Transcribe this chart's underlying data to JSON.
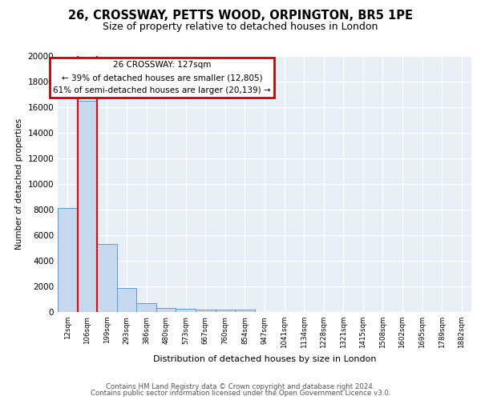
{
  "title1": "26, CROSSWAY, PETTS WOOD, ORPINGTON, BR5 1PE",
  "title2": "Size of property relative to detached houses in London",
  "xlabel": "Distribution of detached houses by size in London",
  "ylabel": "Number of detached properties",
  "categories": [
    "12sqm",
    "106sqm",
    "199sqm",
    "293sqm",
    "386sqm",
    "480sqm",
    "573sqm",
    "667sqm",
    "760sqm",
    "854sqm",
    "947sqm",
    "1041sqm",
    "1134sqm",
    "1228sqm",
    "1321sqm",
    "1415sqm",
    "1508sqm",
    "1602sqm",
    "1695sqm",
    "1789sqm",
    "1882sqm"
  ],
  "values": [
    8100,
    16500,
    5300,
    1850,
    700,
    320,
    230,
    210,
    200,
    180,
    0,
    0,
    0,
    0,
    0,
    0,
    0,
    0,
    0,
    0,
    0
  ],
  "bar_color": "#c5d8ed",
  "bar_edge_color": "#5b9bd5",
  "highlight_bar_index": 1,
  "highlight_color": "#ff0000",
  "property_label": "26 CROSSWAY: 127sqm",
  "annotation_line1": "← 39% of detached houses are smaller (12,805)",
  "annotation_line2": "61% of semi-detached houses are larger (20,139) →",
  "annotation_box_color": "#ffffff",
  "annotation_border_color": "#cc0000",
  "ylim": [
    0,
    20000
  ],
  "yticks": [
    0,
    2000,
    4000,
    6000,
    8000,
    10000,
    12000,
    14000,
    16000,
    18000,
    20000
  ],
  "bg_color": "#ffffff",
  "plot_bg_color": "#e8eef6",
  "grid_color": "#ffffff",
  "footer1": "Contains HM Land Registry data © Crown copyright and database right 2024.",
  "footer2": "Contains public sector information licensed under the Open Government Licence v3.0."
}
